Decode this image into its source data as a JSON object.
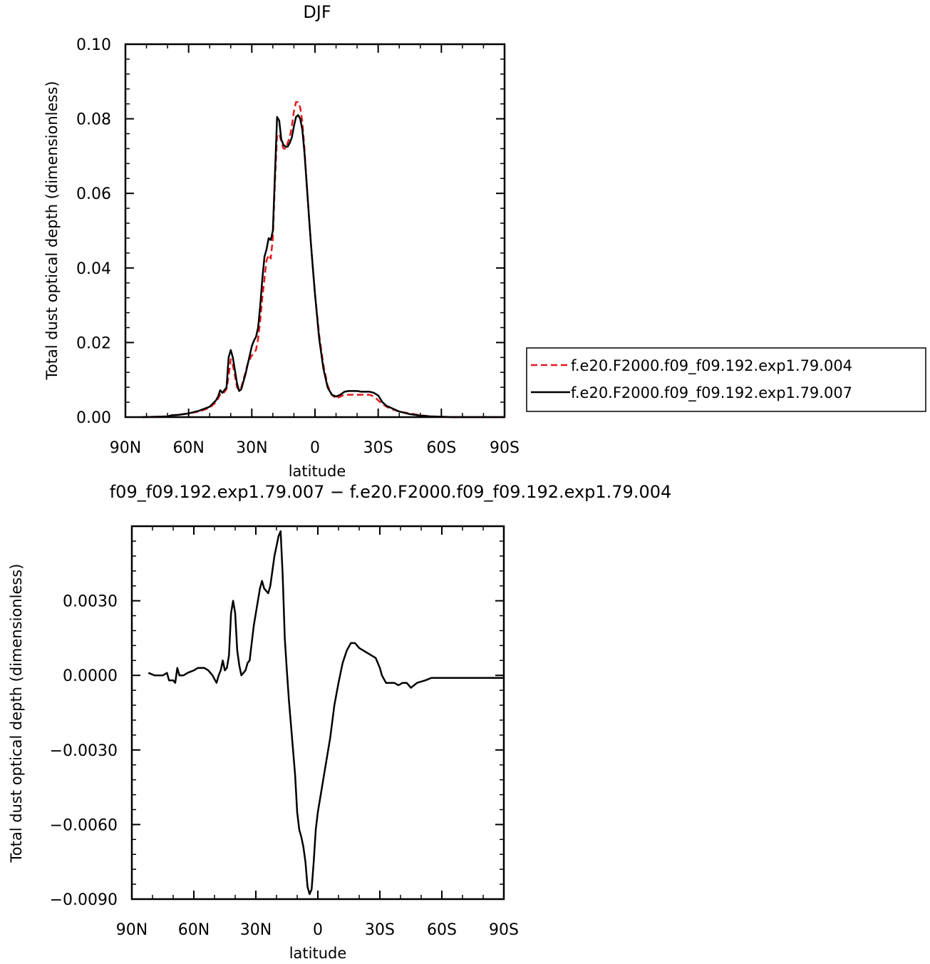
{
  "chart_data": [
    {
      "type": "line",
      "title": "DJF",
      "xlabel": "latitude",
      "ylabel": "Total dust optical depth (dimensionless)",
      "xlim": [
        90,
        -90
      ],
      "ylim": [
        0,
        0.1
      ],
      "x_ticks": [
        {
          "value": 90,
          "label": "90N"
        },
        {
          "value": 60,
          "label": "60N"
        },
        {
          "value": 30,
          "label": "30N"
        },
        {
          "value": 0,
          "label": "0"
        },
        {
          "value": -30,
          "label": "30S"
        },
        {
          "value": -60,
          "label": "60S"
        },
        {
          "value": -90,
          "label": "90S"
        }
      ],
      "y_ticks": [
        {
          "value": 0,
          "label": "0.00"
        },
        {
          "value": 0.02,
          "label": "0.02"
        },
        {
          "value": 0.04,
          "label": "0.04"
        },
        {
          "value": 0.06,
          "label": "0.06"
        },
        {
          "value": 0.08,
          "label": "0.08"
        },
        {
          "value": 0.1,
          "label": "0.10"
        }
      ],
      "legend_position": "right",
      "series": [
        {
          "name": "f.e20.F2000.f09_f09.192.exp1.79.004",
          "color": "#e41a1c",
          "dash": "dashed",
          "x": [
            82,
            75,
            70,
            68,
            65,
            60,
            55,
            50,
            47,
            46,
            45,
            44,
            42,
            41,
            40,
            39,
            38,
            37,
            36,
            35,
            34,
            33,
            32,
            31,
            30,
            29,
            28,
            27,
            26,
            25,
            24,
            23,
            22,
            21,
            20,
            19,
            18,
            17,
            16,
            15,
            14,
            13,
            12,
            11,
            10,
            9,
            8,
            7,
            6,
            5,
            4,
            3,
            2,
            1,
            0,
            -2,
            -4,
            -6,
            -8,
            -10,
            -12,
            -14,
            -16,
            -18,
            -20,
            -22,
            -24,
            -26,
            -28,
            -30,
            -32,
            -34,
            -36,
            -40,
            -45,
            -50,
            -55,
            -60,
            -65,
            -70,
            -75,
            -80,
            -85,
            -90
          ],
          "y": [
            0,
            0.0001,
            0.0002,
            0.0005,
            0.0006,
            0.001,
            0.0015,
            0.0025,
            0.004,
            0.005,
            0.006,
            0.006,
            0.0075,
            0.011,
            0.0155,
            0.014,
            0.011,
            0.008,
            0.0072,
            0.008,
            0.01,
            0.012,
            0.0142,
            0.0155,
            0.0165,
            0.0172,
            0.018,
            0.021,
            0.026,
            0.032,
            0.037,
            0.042,
            0.0435,
            0.0425,
            0.048,
            0.063,
            0.0755,
            0.076,
            0.074,
            0.072,
            0.072,
            0.0735,
            0.075,
            0.078,
            0.082,
            0.0845,
            0.0845,
            0.083,
            0.079,
            0.072,
            0.063,
            0.055,
            0.047,
            0.04,
            0.033,
            0.022,
            0.014,
            0.0085,
            0.006,
            0.005,
            0.0055,
            0.006,
            0.006,
            0.006,
            0.006,
            0.006,
            0.006,
            0.006,
            0.0055,
            0.0045,
            0.0035,
            0.0028,
            0.0022,
            0.0015,
            0.001,
            0.0005,
            0.0002,
            0.0001,
            0,
            0,
            0,
            0,
            0,
            0
          ]
        },
        {
          "name": "f.e20.F2000.f09_f09.192.exp1.79.007",
          "color": "#000000",
          "dash": "solid",
          "x": [
            82,
            75,
            70,
            68,
            65,
            60,
            55,
            50,
            47,
            46,
            45,
            44,
            42,
            41,
            40,
            39,
            38,
            37,
            36,
            35,
            34,
            33,
            32,
            31,
            30,
            29,
            28,
            27,
            26,
            25,
            24,
            23,
            22,
            21,
            20,
            19,
            18,
            17,
            16,
            15,
            14,
            13,
            12,
            11,
            10,
            9,
            8,
            7,
            6,
            5,
            4,
            3,
            2,
            1,
            0,
            -2,
            -4,
            -6,
            -8,
            -10,
            -12,
            -14,
            -16,
            -18,
            -20,
            -22,
            -24,
            -26,
            -28,
            -30,
            -32,
            -34,
            -36,
            -40,
            -45,
            -50,
            -55,
            -60,
            -65,
            -70,
            -75,
            -80,
            -85,
            -90
          ],
          "y": [
            0,
            0.0001,
            0.0002,
            0.0005,
            0.0006,
            0.001,
            0.0017,
            0.0028,
            0.0045,
            0.0055,
            0.0072,
            0.0065,
            0.008,
            0.016,
            0.018,
            0.016,
            0.0125,
            0.009,
            0.007,
            0.0075,
            0.0095,
            0.0115,
            0.014,
            0.0165,
            0.019,
            0.0205,
            0.0215,
            0.024,
            0.03,
            0.037,
            0.043,
            0.045,
            0.048,
            0.0475,
            0.05,
            0.065,
            0.0805,
            0.0795,
            0.0745,
            0.073,
            0.0725,
            0.0725,
            0.0735,
            0.075,
            0.078,
            0.0805,
            0.081,
            0.08,
            0.077,
            0.071,
            0.063,
            0.055,
            0.047,
            0.04,
            0.033,
            0.021,
            0.013,
            0.008,
            0.006,
            0.0055,
            0.006,
            0.0068,
            0.007,
            0.007,
            0.007,
            0.0068,
            0.0068,
            0.0068,
            0.0065,
            0.0058,
            0.004,
            0.003,
            0.0025,
            0.0015,
            0.0008,
            0.0004,
            0.0002,
            0.0001,
            0,
            0,
            0,
            0,
            0,
            0
          ]
        }
      ]
    },
    {
      "type": "line",
      "title": "f09_f09.192.exp1.79.007 − f.e20.F2000.f09_f09.192.exp1.79.004",
      "xlabel": "latitude",
      "ylabel": "Total dust optical depth (dimensionless)",
      "xlim": [
        90,
        -90
      ],
      "ylim": [
        -0.009,
        0.006
      ],
      "x_ticks": [
        {
          "value": 90,
          "label": "90N"
        },
        {
          "value": 60,
          "label": "60N"
        },
        {
          "value": 30,
          "label": "30N"
        },
        {
          "value": 0,
          "label": "0"
        },
        {
          "value": -30,
          "label": "30S"
        },
        {
          "value": -60,
          "label": "60S"
        },
        {
          "value": -90,
          "label": "90S"
        }
      ],
      "y_ticks": [
        {
          "value": -0.009,
          "label": "−0.0090"
        },
        {
          "value": -0.006,
          "label": "−0.0060"
        },
        {
          "value": -0.003,
          "label": "−0.0030"
        },
        {
          "value": 0,
          "label": "0.0000"
        },
        {
          "value": 0.003,
          "label": "0.0030"
        }
      ],
      "series": [
        {
          "color": "#000000",
          "dash": "solid",
          "x": [
            82,
            79,
            75,
            73,
            72,
            70,
            69,
            68,
            67,
            66,
            65,
            63,
            60,
            58,
            55,
            53,
            51,
            49,
            48,
            47,
            46,
            45,
            44,
            43,
            42,
            41,
            40,
            39,
            38,
            37,
            36,
            35,
            34,
            33,
            32,
            31,
            30,
            29,
            28,
            27,
            26,
            25,
            24,
            23,
            22,
            21,
            20,
            19,
            18,
            17,
            16,
            15,
            14,
            13,
            12,
            11,
            10,
            9,
            8,
            7,
            6,
            5,
            4,
            3,
            2,
            1,
            0,
            -2,
            -4,
            -6,
            -8,
            -10,
            -12,
            -14,
            -16,
            -18,
            -20,
            -22,
            -24,
            -26,
            -28,
            -30,
            -31,
            -33,
            -35,
            -37,
            -39,
            -41,
            -42,
            -43,
            -45,
            -48,
            -52,
            -55,
            -60,
            -70,
            -80,
            -90
          ],
          "y": [
            0.0001,
            0,
            0,
            0.0001,
            -0.0002,
            -0.0002,
            -0.0003,
            0.0003,
            0,
            0,
            0,
            0.0001,
            0.0002,
            0.0003,
            0.0003,
            0.0002,
            0,
            -0.0003,
            0,
            0.0002,
            0.0006,
            0.0002,
            0.0003,
            0.0008,
            0.0025,
            0.003,
            0.0025,
            0.001,
            0.0004,
            0,
            0.0001,
            0.0002,
            0.0005,
            0.0006,
            0.0013,
            0.002,
            0.0025,
            0.003,
            0.0035,
            0.0038,
            0.0035,
            0.0034,
            0.0033,
            0.0036,
            0.0042,
            0.0048,
            0.0052,
            0.0056,
            0.0058,
            0.004,
            0.0015,
            0.0002,
            -0.001,
            -0.002,
            -0.003,
            -0.004,
            -0.0055,
            -0.0062,
            -0.0065,
            -0.0069,
            -0.0075,
            -0.0085,
            -0.0088,
            -0.0086,
            -0.0075,
            -0.0062,
            -0.0055,
            -0.0045,
            -0.0035,
            -0.0025,
            -0.0012,
            -0.0003,
            0.0005,
            0.001,
            0.0013,
            0.0013,
            0.0011,
            0.001,
            0.0009,
            0.0008,
            0.0007,
            0.0003,
            0,
            -0.0003,
            -0.0003,
            -0.0003,
            -0.0004,
            -0.0003,
            -0.0003,
            -0.0003,
            -0.0005,
            -0.0003,
            -0.0002,
            -0.0001,
            -0.0001,
            -0.0001,
            -0.0001,
            -0.0001
          ]
        }
      ]
    }
  ]
}
